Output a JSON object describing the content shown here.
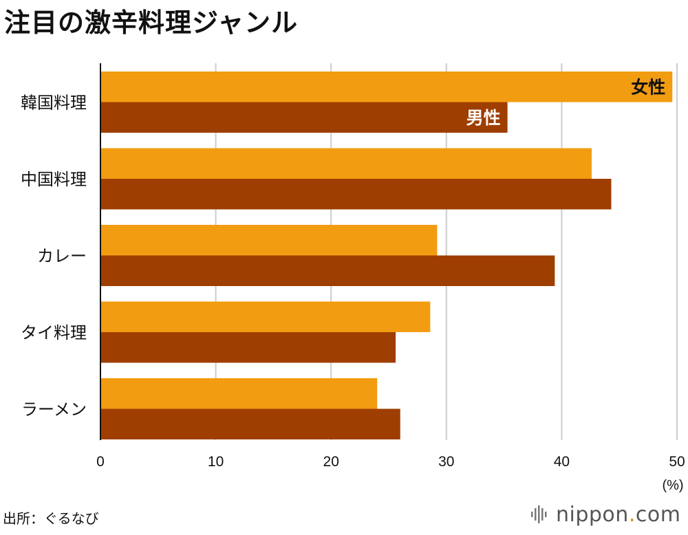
{
  "title": "注目の激辛料理ジャンル",
  "source": "出所：ぐるなび",
  "logo": {
    "name": "nippon",
    "dot": ".",
    "tld": "com"
  },
  "colors": {
    "female": "#f29c11",
    "male": "#9e3e00",
    "grid": "#cccccc",
    "axis": "#111111"
  },
  "chart_data": {
    "type": "bar",
    "orientation": "horizontal",
    "categories": [
      "韓国料理",
      "中国料理",
      "カレー",
      "タイ料理",
      "ラーメン"
    ],
    "series": [
      {
        "name": "女性",
        "values": [
          49.6,
          42.6,
          29.2,
          28.6,
          24.0
        ]
      },
      {
        "name": "男性",
        "values": [
          35.3,
          44.3,
          39.4,
          25.6,
          26.0
        ]
      }
    ],
    "xlim": [
      0,
      50
    ],
    "xticks": [
      "0",
      "10",
      "20",
      "30",
      "40",
      "50"
    ],
    "xunit": "(%)",
    "grid": true
  }
}
